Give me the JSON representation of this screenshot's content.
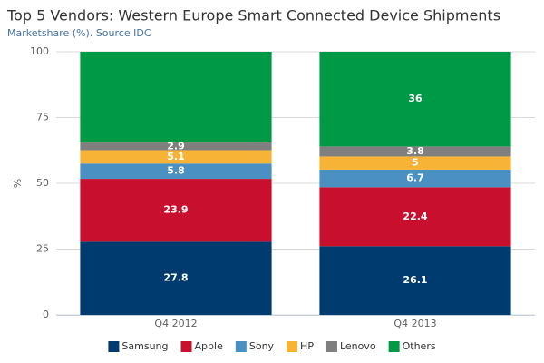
{
  "chart_data": {
    "type": "stacked_bar",
    "title": "Top 5 Vendors: Western Europe Smart Connected Device Shipments",
    "subtitle": "Marketshare (%). Source IDC",
    "y_label": "%",
    "categories": [
      "Q4 2012",
      "Q4 2013"
    ],
    "series": [
      {
        "name": "Samsung",
        "color": "#003b6f",
        "values": [
          27.8,
          26.1
        ]
      },
      {
        "name": "Apple",
        "color": "#c8102e",
        "values": [
          23.9,
          22.4
        ]
      },
      {
        "name": "Sony",
        "color": "#4a90c2",
        "values": [
          5.8,
          6.7
        ]
      },
      {
        "name": "HP",
        "color": "#f7b335",
        "values": [
          5.1,
          5
        ]
      },
      {
        "name": "Lenovo",
        "color": "#7f7f7f",
        "values": [
          2.9,
          3.8
        ]
      },
      {
        "name": "Others",
        "color": "#009a46",
        "values": [
          34.5,
          36
        ],
        "value_labels": [
          null,
          "36"
        ]
      }
    ],
    "ylim": [
      0,
      100
    ],
    "yticks": [
      0,
      25,
      50,
      75,
      100
    ],
    "grid": true
  }
}
